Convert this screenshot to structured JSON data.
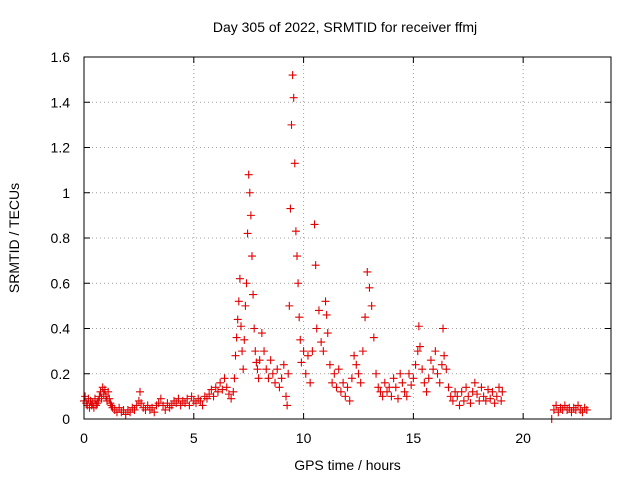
{
  "chart_data": {
    "type": "scatter",
    "title": "Day 305 of 2022, SRMTID for receiver ffmj",
    "xlabel": "GPS time / hours",
    "ylabel": "SRMTID / TECUs",
    "xlim": [
      0,
      24
    ],
    "ylim": [
      0,
      1.6
    ],
    "x_ticks": [
      0,
      5,
      10,
      15,
      20
    ],
    "x_tick_labels": [
      "0",
      "5",
      "10",
      "15",
      "20"
    ],
    "y_ticks": [
      0,
      0.2,
      0.4,
      0.6,
      0.8,
      1.0,
      1.2,
      1.4,
      1.6
    ],
    "y_tick_labels": [
      "0",
      "0.2",
      "0.4",
      "0.6",
      "0.8",
      "1",
      "1.2",
      "1.4",
      "1.6"
    ],
    "grid": true,
    "marker": "plus",
    "series": [
      {
        "name": "SRMTID",
        "color": "#e00000",
        "points": [
          [
            0.0,
            0.08
          ],
          [
            0.05,
            0.1
          ],
          [
            0.1,
            0.07
          ],
          [
            0.15,
            0.06
          ],
          [
            0.2,
            0.09
          ],
          [
            0.25,
            0.05
          ],
          [
            0.3,
            0.08
          ],
          [
            0.35,
            0.06
          ],
          [
            0.4,
            0.07
          ],
          [
            0.45,
            0.05
          ],
          [
            0.5,
            0.09
          ],
          [
            0.55,
            0.06
          ],
          [
            0.6,
            0.07
          ],
          [
            0.65,
            0.08
          ],
          [
            0.7,
            0.1
          ],
          [
            0.75,
            0.12
          ],
          [
            0.8,
            0.09
          ],
          [
            0.85,
            0.14
          ],
          [
            0.9,
            0.11
          ],
          [
            0.95,
            0.13
          ],
          [
            1.0,
            0.1
          ],
          [
            1.05,
            0.08
          ],
          [
            1.1,
            0.12
          ],
          [
            1.15,
            0.09
          ],
          [
            1.2,
            0.07
          ],
          [
            1.25,
            0.06
          ],
          [
            1.3,
            0.05
          ],
          [
            1.4,
            0.04
          ],
          [
            1.5,
            0.03
          ],
          [
            1.6,
            0.05
          ],
          [
            1.7,
            0.03
          ],
          [
            1.8,
            0.04
          ],
          [
            1.9,
            0.02
          ],
          [
            2.0,
            0.04
          ],
          [
            2.1,
            0.03
          ],
          [
            2.2,
            0.05
          ],
          [
            2.3,
            0.04
          ],
          [
            2.4,
            0.06
          ],
          [
            2.5,
            0.08
          ],
          [
            2.55,
            0.12
          ],
          [
            2.6,
            0.07
          ],
          [
            2.7,
            0.05
          ],
          [
            2.8,
            0.04
          ],
          [
            2.9,
            0.06
          ],
          [
            3.0,
            0.04
          ],
          [
            3.1,
            0.05
          ],
          [
            3.2,
            0.03
          ],
          [
            3.3,
            0.06
          ],
          [
            3.4,
            0.07
          ],
          [
            3.5,
            0.09
          ],
          [
            3.6,
            0.06
          ],
          [
            3.7,
            0.04
          ],
          [
            3.8,
            0.07
          ],
          [
            3.9,
            0.05
          ],
          [
            4.0,
            0.06
          ],
          [
            4.1,
            0.08
          ],
          [
            4.2,
            0.07
          ],
          [
            4.3,
            0.09
          ],
          [
            4.4,
            0.06
          ],
          [
            4.5,
            0.08
          ],
          [
            4.6,
            0.07
          ],
          [
            4.7,
            0.09
          ],
          [
            4.8,
            0.06
          ],
          [
            4.9,
            0.1
          ],
          [
            5.0,
            0.08
          ],
          [
            5.1,
            0.07
          ],
          [
            5.2,
            0.09
          ],
          [
            5.3,
            0.08
          ],
          [
            5.4,
            0.06
          ],
          [
            5.5,
            0.1
          ],
          [
            5.6,
            0.09
          ],
          [
            5.7,
            0.11
          ],
          [
            5.8,
            0.13
          ],
          [
            5.9,
            0.1
          ],
          [
            6.0,
            0.14
          ],
          [
            6.1,
            0.12
          ],
          [
            6.2,
            0.16
          ],
          [
            6.3,
            0.13
          ],
          [
            6.4,
            0.18
          ],
          [
            6.5,
            0.14
          ],
          [
            6.6,
            0.11
          ],
          [
            6.7,
            0.09
          ],
          [
            6.8,
            0.12
          ],
          [
            6.85,
            0.18
          ],
          [
            6.9,
            0.28
          ],
          [
            6.95,
            0.36
          ],
          [
            7.0,
            0.44
          ],
          [
            7.05,
            0.52
          ],
          [
            7.1,
            0.62
          ],
          [
            7.15,
            0.41
          ],
          [
            7.2,
            0.3
          ],
          [
            7.25,
            0.22
          ],
          [
            7.3,
            0.35
          ],
          [
            7.35,
            0.5
          ],
          [
            7.4,
            0.6
          ],
          [
            7.45,
            0.82
          ],
          [
            7.5,
            1.08
          ],
          [
            7.55,
            1.0
          ],
          [
            7.6,
            0.9
          ],
          [
            7.65,
            0.72
          ],
          [
            7.7,
            0.55
          ],
          [
            7.75,
            0.4
          ],
          [
            7.8,
            0.3
          ],
          [
            7.85,
            0.25
          ],
          [
            7.9,
            0.22
          ],
          [
            7.95,
            0.18
          ],
          [
            8.0,
            0.26
          ],
          [
            8.1,
            0.38
          ],
          [
            8.2,
            0.3
          ],
          [
            8.3,
            0.22
          ],
          [
            8.4,
            0.18
          ],
          [
            8.5,
            0.26
          ],
          [
            8.6,
            0.2
          ],
          [
            8.7,
            0.16
          ],
          [
            8.8,
            0.22
          ],
          [
            8.9,
            0.14
          ],
          [
            9.0,
            0.18
          ],
          [
            9.1,
            0.24
          ],
          [
            9.2,
            0.1
          ],
          [
            9.25,
            0.06
          ],
          [
            9.3,
            0.2
          ],
          [
            9.35,
            0.5
          ],
          [
            9.4,
            0.93
          ],
          [
            9.45,
            1.3
          ],
          [
            9.5,
            1.52
          ],
          [
            9.55,
            1.42
          ],
          [
            9.6,
            1.13
          ],
          [
            9.65,
            0.83
          ],
          [
            9.7,
            0.72
          ],
          [
            9.75,
            0.6
          ],
          [
            9.8,
            0.45
          ],
          [
            9.85,
            0.35
          ],
          [
            9.9,
            0.25
          ],
          [
            10.0,
            0.3
          ],
          [
            10.1,
            0.2
          ],
          [
            10.2,
            0.28
          ],
          [
            10.3,
            0.16
          ],
          [
            10.4,
            0.3
          ],
          [
            10.5,
            0.86
          ],
          [
            10.55,
            0.68
          ],
          [
            10.6,
            0.4
          ],
          [
            10.7,
            0.48
          ],
          [
            10.8,
            0.34
          ],
          [
            10.9,
            0.3
          ],
          [
            11.0,
            0.52
          ],
          [
            11.05,
            0.46
          ],
          [
            11.1,
            0.38
          ],
          [
            11.2,
            0.24
          ],
          [
            11.3,
            0.16
          ],
          [
            11.4,
            0.2
          ],
          [
            11.5,
            0.14
          ],
          [
            11.6,
            0.22
          ],
          [
            11.7,
            0.12
          ],
          [
            11.8,
            0.16
          ],
          [
            11.9,
            0.1
          ],
          [
            12.0,
            0.14
          ],
          [
            12.1,
            0.08
          ],
          [
            12.2,
            0.18
          ],
          [
            12.3,
            0.28
          ],
          [
            12.4,
            0.24
          ],
          [
            12.5,
            0.2
          ],
          [
            12.6,
            0.16
          ],
          [
            12.7,
            0.3
          ],
          [
            12.8,
            0.45
          ],
          [
            12.9,
            0.65
          ],
          [
            13.0,
            0.58
          ],
          [
            13.1,
            0.5
          ],
          [
            13.2,
            0.36
          ],
          [
            13.3,
            0.2
          ],
          [
            13.4,
            0.14
          ],
          [
            13.5,
            0.12
          ],
          [
            13.6,
            0.1
          ],
          [
            13.7,
            0.16
          ],
          [
            13.8,
            0.12
          ],
          [
            13.9,
            0.14
          ],
          [
            14.0,
            0.1
          ],
          [
            14.1,
            0.18
          ],
          [
            14.2,
            0.14
          ],
          [
            14.3,
            0.09
          ],
          [
            14.4,
            0.2
          ],
          [
            14.5,
            0.16
          ],
          [
            14.6,
            0.12
          ],
          [
            14.7,
            0.1
          ],
          [
            14.8,
            0.2
          ],
          [
            14.9,
            0.15
          ],
          [
            15.0,
            0.18
          ],
          [
            15.1,
            0.24
          ],
          [
            15.2,
            0.3
          ],
          [
            15.25,
            0.41
          ],
          [
            15.3,
            0.32
          ],
          [
            15.4,
            0.22
          ],
          [
            15.5,
            0.16
          ],
          [
            15.6,
            0.12
          ],
          [
            15.7,
            0.18
          ],
          [
            15.8,
            0.26
          ],
          [
            15.9,
            0.22
          ],
          [
            16.0,
            0.3
          ],
          [
            16.1,
            0.2
          ],
          [
            16.2,
            0.16
          ],
          [
            16.3,
            0.24
          ],
          [
            16.35,
            0.4
          ],
          [
            16.4,
            0.28
          ],
          [
            16.5,
            0.22
          ],
          [
            16.6,
            0.14
          ],
          [
            16.7,
            0.1
          ],
          [
            16.8,
            0.08
          ],
          [
            16.9,
            0.12
          ],
          [
            17.0,
            0.1
          ],
          [
            17.1,
            0.06
          ],
          [
            17.2,
            0.12
          ],
          [
            17.3,
            0.08
          ],
          [
            17.4,
            0.14
          ],
          [
            17.5,
            0.1
          ],
          [
            17.6,
            0.07
          ],
          [
            17.7,
            0.12
          ],
          [
            17.8,
            0.16
          ],
          [
            17.9,
            0.11
          ],
          [
            18.0,
            0.08
          ],
          [
            18.1,
            0.14
          ],
          [
            18.2,
            0.1
          ],
          [
            18.3,
            0.08
          ],
          [
            18.4,
            0.13
          ],
          [
            18.5,
            0.09
          ],
          [
            18.6,
            0.12
          ],
          [
            18.7,
            0.07
          ],
          [
            18.8,
            0.1
          ],
          [
            18.9,
            0.14
          ],
          [
            19.0,
            0.08
          ],
          [
            19.05,
            0.12
          ],
          [
            21.3,
            0.0
          ],
          [
            21.4,
            0.04
          ],
          [
            21.5,
            0.06
          ],
          [
            21.6,
            0.03
          ],
          [
            21.7,
            0.05
          ],
          [
            21.8,
            0.04
          ],
          [
            21.9,
            0.06
          ],
          [
            22.0,
            0.04
          ],
          [
            22.1,
            0.05
          ],
          [
            22.2,
            0.03
          ],
          [
            22.3,
            0.05
          ],
          [
            22.4,
            0.04
          ],
          [
            22.5,
            0.06
          ],
          [
            22.6,
            0.04
          ],
          [
            22.7,
            0.03
          ],
          [
            22.8,
            0.05
          ],
          [
            22.9,
            0.04
          ]
        ]
      }
    ]
  }
}
